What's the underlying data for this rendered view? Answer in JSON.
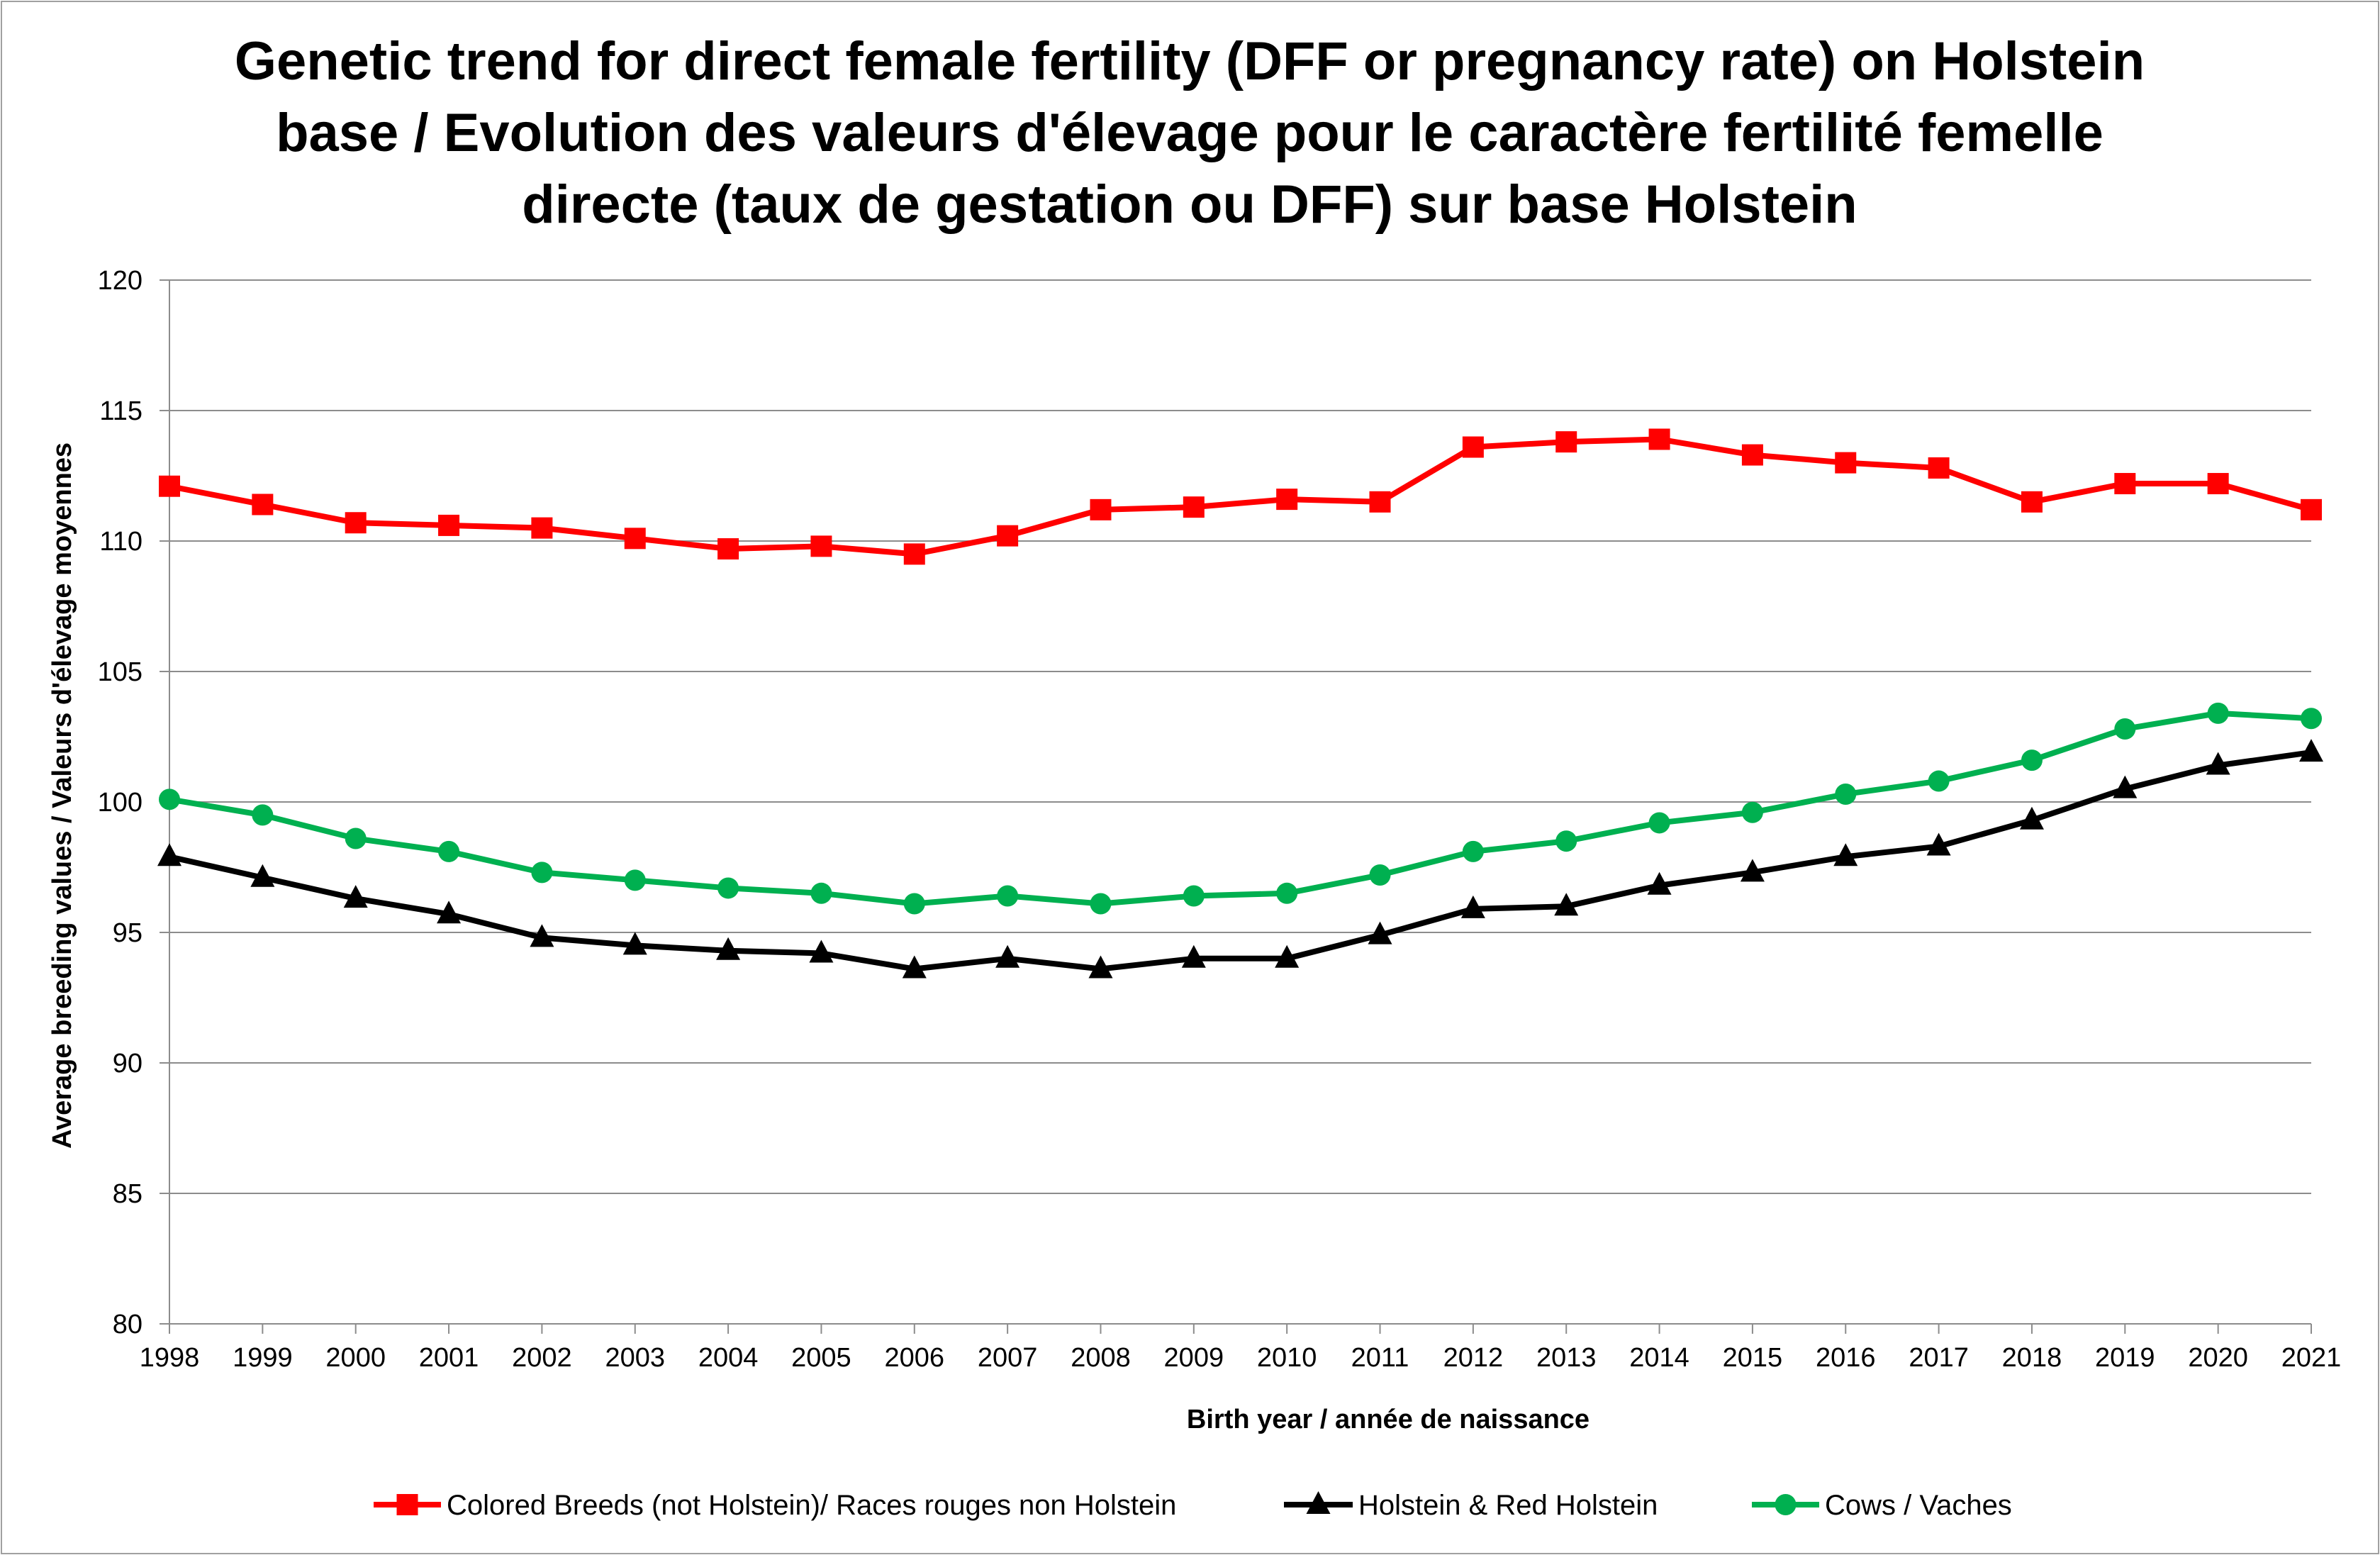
{
  "chart_data": {
    "type": "line",
    "title_lines": [
      "Genetic trend for direct female fertility (DFF or pregnancy rate) on Holstein",
      "base / Evolution des valeurs d'élevage pour le caractère fertilité femelle",
      "directe (taux de gestation ou DFF) sur base Holstein"
    ],
    "xlabel": "Birth year / année de naissance",
    "ylabel": "Average breeding values / Valeurs d'élevage moyennes",
    "ylim": [
      80,
      120
    ],
    "yticks": [
      "80",
      "85",
      "90",
      "95",
      "100",
      "105",
      "110",
      "115",
      "120"
    ],
    "categories": [
      "1998",
      "1999",
      "2000",
      "2001",
      "2002",
      "2003",
      "2004",
      "2005",
      "2006",
      "2007",
      "2008",
      "2009",
      "2010",
      "2011",
      "2012",
      "2013",
      "2014",
      "2015",
      "2016",
      "2017",
      "2018",
      "2019",
      "2020",
      "2021"
    ],
    "grid": "horizontal",
    "legend_position": "bottom",
    "series": [
      {
        "name": "Colored Breeds (not Holstein)/ Races rouges non Holstein",
        "color": "#ff0000",
        "marker": "square",
        "values": [
          112.1,
          111.4,
          110.7,
          110.6,
          110.5,
          110.1,
          109.7,
          109.8,
          109.5,
          110.2,
          111.2,
          111.3,
          111.6,
          111.5,
          113.6,
          113.8,
          113.9,
          113.3,
          113.0,
          112.8,
          111.5,
          112.2,
          112.2,
          111.2
        ]
      },
      {
        "name": "Holstein & Red Holstein",
        "color": "#000000",
        "marker": "triangle",
        "values": [
          97.9,
          97.1,
          96.3,
          95.7,
          94.8,
          94.5,
          94.3,
          94.2,
          93.6,
          94.0,
          93.6,
          94.0,
          94.0,
          94.9,
          95.9,
          96.0,
          96.8,
          97.3,
          97.9,
          98.3,
          99.3,
          100.5,
          101.4,
          101.9
        ]
      },
      {
        "name": "Cows / Vaches",
        "color": "#00b050",
        "marker": "circle",
        "values": [
          100.1,
          99.5,
          98.6,
          98.1,
          97.3,
          97.0,
          96.7,
          96.5,
          96.1,
          96.4,
          96.1,
          96.4,
          96.5,
          97.2,
          98.1,
          98.5,
          99.2,
          99.6,
          100.3,
          100.8,
          101.6,
          102.8,
          103.4,
          103.2
        ]
      }
    ]
  }
}
